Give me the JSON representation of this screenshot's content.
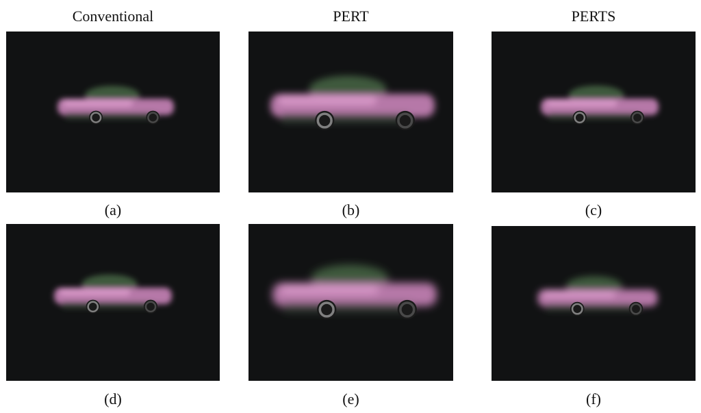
{
  "columns": [
    "Conventional",
    "PERT",
    "PERTS"
  ],
  "panels": [
    {
      "label": "(a)"
    },
    {
      "label": "(b)"
    },
    {
      "label": "(c)"
    },
    {
      "label": "(d)"
    },
    {
      "label": "(e)"
    },
    {
      "label": "(f)"
    }
  ]
}
